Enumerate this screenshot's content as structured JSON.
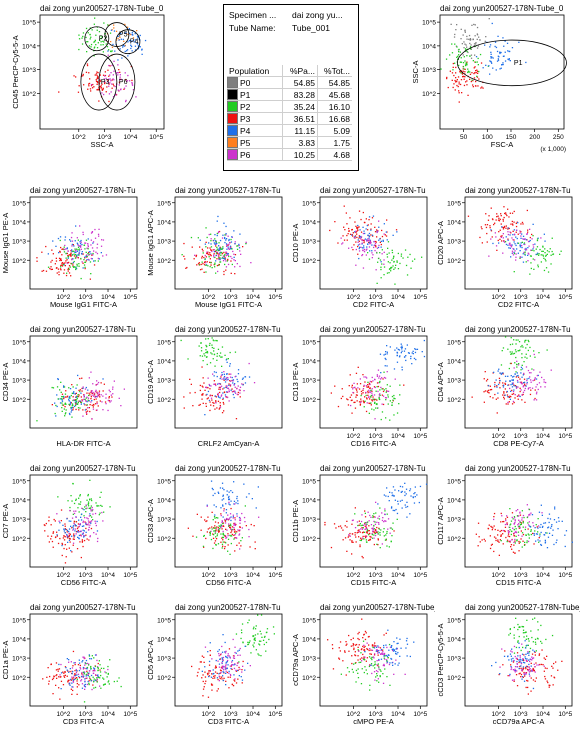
{
  "legend": {
    "specimen_label": "Specimen ...",
    "specimen_value": "dai zong yu...",
    "tube_label": "Tube Name:",
    "tube_value": "Tube_001",
    "columns": [
      "Population",
      "%Pa...",
      "%Tot..."
    ],
    "rows": [
      {
        "name": "P0",
        "color": "#7f7f7f",
        "parent": "54.85",
        "total": "54.85"
      },
      {
        "name": "P1",
        "color": "#000000",
        "parent": "83.28",
        "total": "45.68"
      },
      {
        "name": "P2",
        "color": "#22cc22",
        "parent": "35.24",
        "total": "16.10"
      },
      {
        "name": "P3",
        "color": "#ee1111",
        "parent": "36.51",
        "total": "16.68"
      },
      {
        "name": "P4",
        "color": "#1f6fe8",
        "parent": "11.15",
        "total": "5.09"
      },
      {
        "name": "P5",
        "color": "#ff7f1f",
        "parent": "3.83",
        "total": "1.75"
      },
      {
        "name": "P6",
        "color": "#cc33cc",
        "parent": "10.25",
        "total": "4.68"
      }
    ]
  },
  "colors": {
    "P0": "#7f7f7f",
    "P2": "#22cc22",
    "P3": "#ee1111",
    "P4": "#1f6fe8",
    "P5": "#ff7f1f",
    "P6": "#cc33cc"
  },
  "chart_data": [
    {
      "type": "scatter",
      "title": "dai zong yun200527-178N-Tube_0",
      "xlabel": "SSC-A",
      "ylabel": "CD45 PerCP-Cy5-5-A",
      "x_scale": "log",
      "y_scale": "log",
      "xticks": [
        "10^2",
        "10^3",
        "10^4",
        "10^5"
      ],
      "yticks": [
        "10^2",
        "10^3",
        "10^4",
        "10^5"
      ],
      "gates": [
        "P2",
        "P3",
        "P4",
        "P5",
        "P6"
      ],
      "populations": [
        {
          "name": "P2",
          "x_center": 500,
          "y_center": 20000
        },
        {
          "name": "P5",
          "x_center": 3000,
          "y_center": 30000
        },
        {
          "name": "P4",
          "x_center": 8000,
          "y_center": 15000
        },
        {
          "name": "P3",
          "x_center": 600,
          "y_center": 300
        },
        {
          "name": "P6",
          "x_center": 3000,
          "y_center": 300
        }
      ]
    },
    {
      "type": "scatter",
      "title": "dai zong yun200527-178N-Tube_0",
      "xlabel": "FSC-A",
      "ylabel": "SSC-A",
      "x_scale": "linear",
      "y_scale": "log",
      "xticks": [
        "50",
        "100",
        "150",
        "200",
        "250"
      ],
      "x_unit": "(x 1,000)",
      "yticks": [
        "10^2",
        "10^3",
        "10^4",
        "10^5"
      ],
      "gates": [
        "P1"
      ],
      "populations": [
        {
          "name": "P0",
          "x_center": 60,
          "y_center": 20000
        },
        {
          "name": "P3",
          "x_center": 50,
          "y_center": 600
        },
        {
          "name": "P2",
          "x_center": 55,
          "y_center": 2500
        },
        {
          "name": "P4",
          "x_center": 120,
          "y_center": 4000
        }
      ]
    },
    {
      "type": "scatter",
      "title": "dai zong yun200527-178N-Tu",
      "xlabel": "Mouse IgG1 FITC-A",
      "ylabel": "Mouse IgG1 PE-A",
      "x_scale": "log",
      "y_scale": "log",
      "xticks": [
        "10^2",
        "10^3",
        "10^4",
        "10^5"
      ],
      "yticks": [
        "10^2",
        "10^3",
        "10^4",
        "10^5"
      ],
      "populations": [
        {
          "name": "P3",
          "x_center": 100,
          "y_center": 100
        },
        {
          "name": "P4",
          "x_center": 400,
          "y_center": 300
        },
        {
          "name": "P2",
          "x_center": 300,
          "y_center": 150
        },
        {
          "name": "P6",
          "x_center": 800,
          "y_center": 600
        }
      ]
    },
    {
      "type": "scatter",
      "title": "dai zong yun200527-178N-Tu",
      "xlabel": "Mouse IgG1 FITC-A",
      "ylabel": "Mouse IgG1 APC-A",
      "x_scale": "log",
      "y_scale": "log",
      "xticks": [
        "10^2",
        "10^3",
        "10^4",
        "10^5"
      ],
      "yticks": [
        "10^2",
        "10^3",
        "10^4",
        "10^5"
      ],
      "populations": [
        {
          "name": "P3",
          "x_center": 150,
          "y_center": 200
        },
        {
          "name": "P6",
          "x_center": 500,
          "y_center": 300
        },
        {
          "name": "P4",
          "x_center": 400,
          "y_center": 700
        },
        {
          "name": "P2",
          "x_center": 300,
          "y_center": 250
        }
      ]
    },
    {
      "type": "scatter",
      "title": "dai zong yun200527-178N-Tu",
      "xlabel": "CD2 FITC-A",
      "ylabel": "CD10 PE-A",
      "x_scale": "log",
      "y_scale": "log",
      "xticks": [
        "10^2",
        "10^3",
        "10^4",
        "10^5"
      ],
      "yticks": [
        "10^2",
        "10^3",
        "10^4",
        "10^5"
      ],
      "populations": [
        {
          "name": "P3",
          "x_center": 200,
          "y_center": 3000
        },
        {
          "name": "P4",
          "x_center": 500,
          "y_center": 1500
        },
        {
          "name": "P6",
          "x_center": 400,
          "y_center": 800
        },
        {
          "name": "P2",
          "x_center": 5000,
          "y_center": 100
        }
      ]
    },
    {
      "type": "scatter",
      "title": "dai zong yun200527-178N-Tu",
      "xlabel": "CD2 FITC-A",
      "ylabel": "CD20 APC-A",
      "x_scale": "log",
      "y_scale": "log",
      "xticks": [
        "10^2",
        "10^3",
        "10^4",
        "10^5"
      ],
      "yticks": [
        "10^2",
        "10^3",
        "10^4",
        "10^5"
      ],
      "populations": [
        {
          "name": "P3",
          "x_center": 150,
          "y_center": 6000
        },
        {
          "name": "P4",
          "x_center": 600,
          "y_center": 800
        },
        {
          "name": "P6",
          "x_center": 500,
          "y_center": 1000
        },
        {
          "name": "P2",
          "x_center": 6000,
          "y_center": 200
        }
      ]
    },
    {
      "type": "scatter",
      "title": "dai zong yun200527-178N-Tu",
      "xlabel": "HLA-DR FITC-A",
      "ylabel": "CD34 PE-A",
      "x_scale": "log",
      "y_scale": "log",
      "xticks": [],
      "yticks": [
        "10^2",
        "10^3",
        "10^4",
        "10^5"
      ],
      "populations": [
        {
          "name": "P3",
          "x_center": 1000,
          "y_center": 100
        },
        {
          "name": "P4",
          "x_center": 300,
          "y_center": 120
        },
        {
          "name": "P2",
          "x_center": 200,
          "y_center": 80
        },
        {
          "name": "P6",
          "x_center": 3000,
          "y_center": 150
        }
      ]
    },
    {
      "type": "scatter",
      "title": "dai zong yun200527-178N-Tu",
      "xlabel": "CRLF2 AmCyan-A",
      "ylabel": "CD19 APC-A",
      "x_scale": "log",
      "y_scale": "log",
      "xticks": [],
      "yticks": [
        "10^2",
        "10^3",
        "10^4",
        "10^5"
      ],
      "populations": [
        {
          "name": "P2",
          "x_center": 100,
          "y_center": 30000
        },
        {
          "name": "P3",
          "x_center": 200,
          "y_center": 200
        },
        {
          "name": "P4",
          "x_center": 500,
          "y_center": 800
        },
        {
          "name": "P6",
          "x_center": 600,
          "y_center": 500
        }
      ]
    },
    {
      "type": "scatter",
      "title": "dai zong yun200527-178N-Tu",
      "xlabel": "CD16 FITC-A",
      "ylabel": "CD13 PE-A",
      "x_scale": "log",
      "y_scale": "log",
      "xticks": [
        "10^2",
        "10^3",
        "10^4",
        "10^5"
      ],
      "yticks": [
        "10^2",
        "10^3",
        "10^4",
        "10^5"
      ],
      "populations": [
        {
          "name": "P3",
          "x_center": 200,
          "y_center": 200
        },
        {
          "name": "P6",
          "x_center": 600,
          "y_center": 500
        },
        {
          "name": "P4",
          "x_center": 12000,
          "y_center": 20000
        },
        {
          "name": "P2",
          "x_center": 2000,
          "y_center": 100
        }
      ]
    },
    {
      "type": "scatter",
      "title": "dai zong yun200527-178N-Tu",
      "xlabel": "CD8 PE-Cy7-A",
      "ylabel": "CD4 APC-A",
      "x_scale": "log",
      "y_scale": "log",
      "xticks": [
        "10^2",
        "10^3",
        "10^4",
        "10^5"
      ],
      "yticks": [
        "10^2",
        "10^3",
        "10^4",
        "10^5"
      ],
      "populations": [
        {
          "name": "P2",
          "x_center": 1000,
          "y_center": 30000
        },
        {
          "name": "P3",
          "x_center": 150,
          "y_center": 300
        },
        {
          "name": "P4",
          "x_center": 400,
          "y_center": 1000
        },
        {
          "name": "P6",
          "x_center": 2000,
          "y_center": 800
        }
      ]
    },
    {
      "type": "scatter",
      "title": "dai zong yun200527-178N-Tu",
      "xlabel": "CD56 FITC-A",
      "ylabel": "CD7 PE-A",
      "x_scale": "log",
      "y_scale": "log",
      "xticks": [
        "10^2",
        "10^3",
        "10^4",
        "10^5"
      ],
      "yticks": [
        "10^2",
        "10^3",
        "10^4",
        "10^5"
      ],
      "populations": [
        {
          "name": "P2",
          "x_center": 1000,
          "y_center": 6000
        },
        {
          "name": "P3",
          "x_center": 200,
          "y_center": 200
        },
        {
          "name": "P4",
          "x_center": 300,
          "y_center": 400
        },
        {
          "name": "P6",
          "x_center": 800,
          "y_center": 600
        }
      ]
    },
    {
      "type": "scatter",
      "title": "dai zong yun200527-178N-Tu",
      "xlabel": "CD56 FITC-A",
      "ylabel": "CD33 APC-A",
      "x_scale": "log",
      "y_scale": "log",
      "xticks": [
        "10^2",
        "10^3",
        "10^4",
        "10^5"
      ],
      "yticks": [
        "10^2",
        "10^3",
        "10^4",
        "10^5"
      ],
      "populations": [
        {
          "name": "P4",
          "x_center": 600,
          "y_center": 8000
        },
        {
          "name": "P3",
          "x_center": 500,
          "y_center": 300
        },
        {
          "name": "P6",
          "x_center": 1000,
          "y_center": 600
        },
        {
          "name": "P2",
          "x_center": 300,
          "y_center": 200
        }
      ]
    },
    {
      "type": "scatter",
      "title": "dai zong yun200527-178N-Tu",
      "xlabel": "CD15 FITC-A",
      "ylabel": "CD11b PE-A",
      "x_scale": "log",
      "y_scale": "log",
      "xticks": [
        "10^2",
        "10^3",
        "10^4",
        "10^5"
      ],
      "yticks": [
        "10^2",
        "10^3",
        "10^4",
        "10^5"
      ],
      "populations": [
        {
          "name": "P4",
          "x_center": 15000,
          "y_center": 15000
        },
        {
          "name": "P3",
          "x_center": 200,
          "y_center": 200
        },
        {
          "name": "P6",
          "x_center": 600,
          "y_center": 600
        },
        {
          "name": "P2",
          "x_center": 800,
          "y_center": 300
        }
      ]
    },
    {
      "type": "scatter",
      "title": "dai zong yun200527-178N-Tu",
      "xlabel": "CD15 FITC-A",
      "ylabel": "CD117 APC-A",
      "x_scale": "log",
      "y_scale": "log",
      "xticks": [
        "10^2",
        "10^3",
        "10^4",
        "10^5"
      ],
      "yticks": [
        "10^2",
        "10^3",
        "10^4",
        "10^5"
      ],
      "populations": [
        {
          "name": "P3",
          "x_center": 200,
          "y_center": 200
        },
        {
          "name": "P6",
          "x_center": 800,
          "y_center": 500
        },
        {
          "name": "P2",
          "x_center": 1200,
          "y_center": 300
        },
        {
          "name": "P4",
          "x_center": 15000,
          "y_center": 300
        }
      ]
    },
    {
      "type": "scatter",
      "title": "dai zong yun200527-178N-Tu",
      "xlabel": "CD3 FITC-A",
      "ylabel": "CD1a PE-A",
      "x_scale": "log",
      "y_scale": "log",
      "xticks": [
        "10^2",
        "10^3",
        "10^4",
        "10^5"
      ],
      "yticks": [
        "10^2",
        "10^3",
        "10^4",
        "10^5"
      ],
      "populations": [
        {
          "name": "P3",
          "x_center": 200,
          "y_center": 100
        },
        {
          "name": "P6",
          "x_center": 800,
          "y_center": 200
        },
        {
          "name": "P4",
          "x_center": 500,
          "y_center": 150
        },
        {
          "name": "P2",
          "x_center": 3000,
          "y_center": 150
        }
      ]
    },
    {
      "type": "scatter",
      "title": "dai zong yun200527-178N-Tu",
      "xlabel": "CD3 FITC-A",
      "ylabel": "CD5 APC-A",
      "x_scale": "log",
      "y_scale": "log",
      "xticks": [
        "10^2",
        "10^3",
        "10^4",
        "10^5"
      ],
      "yticks": [
        "10^2",
        "10^3",
        "10^4",
        "10^5"
      ],
      "populations": [
        {
          "name": "P2",
          "x_center": 10000,
          "y_center": 15000
        },
        {
          "name": "P3",
          "x_center": 200,
          "y_center": 200
        },
        {
          "name": "P4",
          "x_center": 600,
          "y_center": 500
        },
        {
          "name": "P6",
          "x_center": 800,
          "y_center": 600
        }
      ]
    },
    {
      "type": "scatter",
      "title": "dai zong yun200527-178N-Tube_0(",
      "xlabel": "cMPO PE-A",
      "ylabel": "cCD79a APC-A",
      "x_scale": "log",
      "y_scale": "log",
      "xticks": [
        "10^2",
        "10^3",
        "10^4",
        "10^5"
      ],
      "yticks": [
        "10^2",
        "10^3",
        "10^4",
        "10^5"
      ],
      "populations": [
        {
          "name": "P3",
          "x_center": 200,
          "y_center": 3000
        },
        {
          "name": "P6",
          "x_center": 1500,
          "y_center": 1000
        },
        {
          "name": "P4",
          "x_center": 5000,
          "y_center": 2500
        },
        {
          "name": "P2",
          "x_center": 600,
          "y_center": 400
        }
      ]
    },
    {
      "type": "scatter",
      "title": "dai zong yun200527-178N-Tube_0",
      "xlabel": "cCD79a APC-A",
      "ylabel": "cCD3 PerCP-Cy5-5-A",
      "x_scale": "log",
      "y_scale": "log",
      "xticks": [
        "10^2",
        "10^3",
        "10^4",
        "10^5"
      ],
      "yticks": [
        "10^2",
        "10^3",
        "10^4",
        "10^5"
      ],
      "populations": [
        {
          "name": "P2",
          "x_center": 1500,
          "y_center": 15000
        },
        {
          "name": "P3",
          "x_center": 3000,
          "y_center": 300
        },
        {
          "name": "P4",
          "x_center": 1000,
          "y_center": 1000
        },
        {
          "name": "P6",
          "x_center": 1200,
          "y_center": 500
        }
      ]
    }
  ]
}
